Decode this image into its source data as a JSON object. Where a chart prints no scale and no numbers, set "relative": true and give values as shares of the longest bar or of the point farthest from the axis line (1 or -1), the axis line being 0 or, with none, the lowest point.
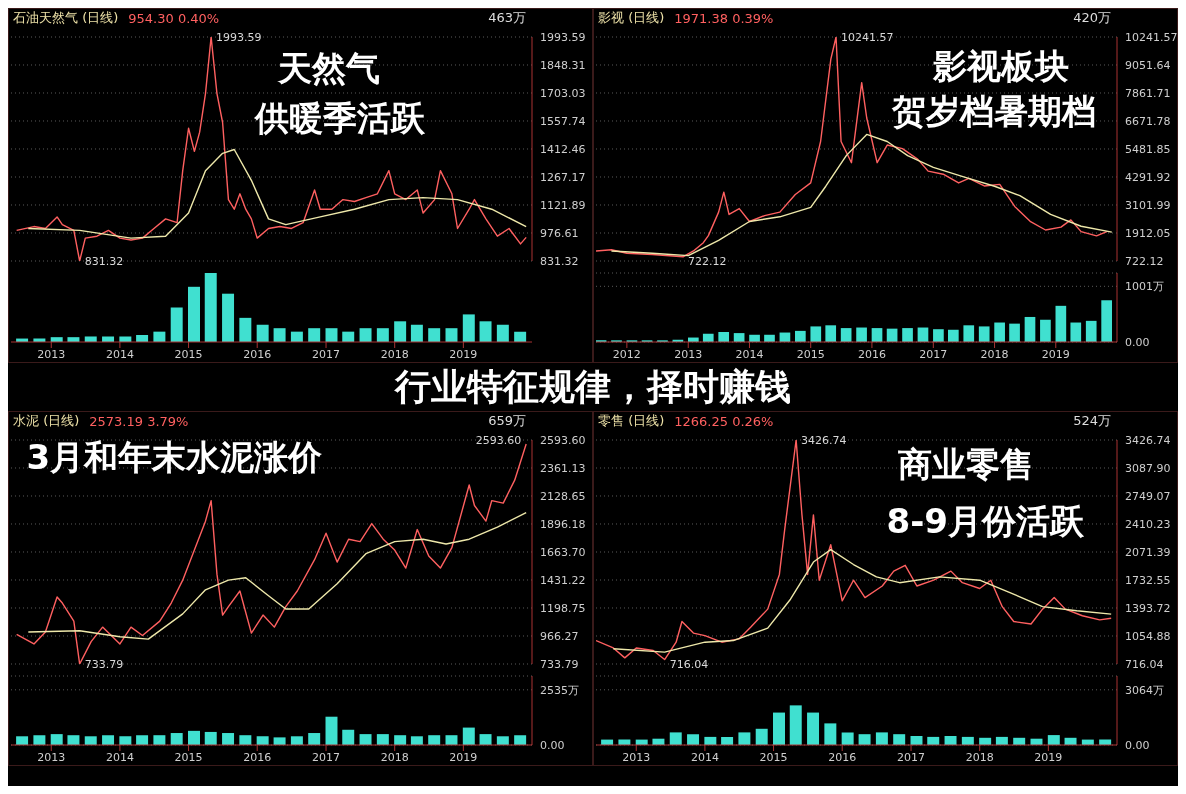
{
  "chart_data": [
    {
      "type": "line",
      "title": "石油天然气 (日线)",
      "subtitle": "954.30 0.40%",
      "annotations": [
        "463万",
        "天然气",
        "供暖季活跃",
        {
          "text": "1993.59",
          "x": "2015-05",
          "y": 1993.59
        },
        {
          "text": "831.32",
          "x": "2013-06",
          "y": 831.32
        }
      ],
      "xlim": [
        "2012-06",
        "2020-01"
      ],
      "xticks": [
        "2013",
        "2014",
        "2015",
        "2016",
        "2017",
        "2018",
        "2019"
      ],
      "ylim": [
        831.32,
        1993.59
      ],
      "yticks": [
        831.32,
        976.61,
        1121.89,
        1267.17,
        1412.46,
        1557.74,
        1703.03,
        1848.31,
        1993.59
      ],
      "grid": "y",
      "tick_labels": "y",
      "series": [
        {
          "color": "#ff6060",
          "x": [
            "2012-07",
            "2012-10",
            "2012-12",
            "2013-02",
            "2013-03",
            "2013-05",
            "2013-06",
            "2013-07",
            "2013-09",
            "2013-11",
            "2014-01",
            "2014-03",
            "2014-05",
            "2014-07",
            "2014-09",
            "2014-11",
            "2014-12",
            "2015-01",
            "2015-02",
            "2015-03",
            "2015-04",
            "2015-05",
            "2015-06",
            "2015-07",
            "2015-08",
            "2015-09",
            "2015-10",
            "2015-11",
            "2015-12",
            "2016-01",
            "2016-03",
            "2016-05",
            "2016-07",
            "2016-09",
            "2016-11",
            "2016-12",
            "2017-02",
            "2017-04",
            "2017-06",
            "2017-08",
            "2017-10",
            "2017-12",
            "2018-01",
            "2018-03",
            "2018-05",
            "2018-06",
            "2018-08",
            "2018-09",
            "2018-11",
            "2018-12",
            "2019-02",
            "2019-03",
            "2019-05",
            "2019-07",
            "2019-09",
            "2019-11",
            "2019-12"
          ],
          "values": [
            990,
            1010,
            1000,
            1060,
            1020,
            990,
            831.32,
            950,
            960,
            990,
            950,
            940,
            950,
            1000,
            1050,
            1030,
            1300,
            1520,
            1400,
            1500,
            1700,
            1993.59,
            1700,
            1550,
            1150,
            1100,
            1180,
            1100,
            1050,
            950,
            1000,
            1010,
            1000,
            1030,
            1200,
            1100,
            1100,
            1150,
            1140,
            1160,
            1180,
            1300,
            1180,
            1150,
            1200,
            1080,
            1150,
            1300,
            1180,
            1000,
            1100,
            1150,
            1050,
            960,
            1000,
            920,
            954
          ]
        },
        {
          "color": "#eee8aa",
          "x": [
            "2012-09",
            "2013-06",
            "2014-03",
            "2014-09",
            "2015-01",
            "2015-04",
            "2015-07",
            "2015-09",
            "2015-12",
            "2016-03",
            "2016-06",
            "2016-12",
            "2017-06",
            "2017-12",
            "2018-06",
            "2018-12",
            "2019-06",
            "2019-12"
          ],
          "values": [
            1000,
            990,
            950,
            960,
            1080,
            1300,
            1390,
            1410,
            1250,
            1050,
            1020,
            1060,
            1100,
            1150,
            1160,
            1150,
            1100,
            1010
          ]
        }
      ]
    },
    {
      "type": "bar",
      "relative": true,
      "color": "#40e0d0",
      "xlim": [
        "2012-06",
        "2020-01"
      ],
      "xticks": [
        "2013",
        "2014",
        "2015",
        "2016",
        "2017",
        "2018",
        "2019"
      ],
      "annotations": [
        "行业特征规律，择时赚钱"
      ],
      "x": [
        "2012-08",
        "2012-11",
        "2013-02",
        "2013-05",
        "2013-08",
        "2013-11",
        "2014-02",
        "2014-05",
        "2014-08",
        "2014-11",
        "2015-02",
        "2015-05",
        "2015-08",
        "2015-11",
        "2016-02",
        "2016-05",
        "2016-08",
        "2016-11",
        "2017-02",
        "2017-05",
        "2017-08",
        "2017-11",
        "2018-02",
        "2018-05",
        "2018-08",
        "2018-11",
        "2019-02",
        "2019-05",
        "2019-08",
        "2019-11"
      ],
      "values": [
        0.05,
        0.05,
        0.07,
        0.07,
        0.08,
        0.08,
        0.08,
        0.1,
        0.15,
        0.5,
        0.8,
        1,
        0.7,
        0.35,
        0.25,
        0.2,
        0.15,
        0.2,
        0.2,
        0.15,
        0.2,
        0.2,
        0.3,
        0.25,
        0.2,
        0.2,
        0.4,
        0.3,
        0.25,
        0.15
      ]
    },
    {
      "type": "line",
      "title": "影视 (日线)",
      "subtitle": "1971.38 0.39%",
      "annotations": [
        "420万",
        "影视板块",
        "贺岁档暑期档",
        {
          "text": "10241.57",
          "x": "2015-06",
          "y": 10241.57
        },
        {
          "text": "722.12",
          "x": "2012-12",
          "y": 722.12
        }
      ],
      "xlim": [
        "2011-07",
        "2020-01"
      ],
      "xticks": [
        "2012",
        "2013",
        "2014",
        "2015",
        "2016",
        "2017",
        "2018",
        "2019"
      ],
      "ylim": [
        722.12,
        10241.57
      ],
      "yticks": [
        722.12,
        1912.05,
        3101.99,
        4291.92,
        5481.85,
        6671.78,
        7861.71,
        9051.64,
        10241.57
      ],
      "grid": "y",
      "tick_labels": "y",
      "series": [
        {
          "color": "#ff6060",
          "x": [
            "2011-07",
            "2011-10",
            "2012-01",
            "2012-06",
            "2012-12",
            "2013-02",
            "2013-04",
            "2013-05",
            "2013-07",
            "2013-08",
            "2013-09",
            "2013-11",
            "2014-01",
            "2014-04",
            "2014-07",
            "2014-10",
            "2015-01",
            "2015-03",
            "2015-05",
            "2015-06",
            "2015-07",
            "2015-09",
            "2015-11",
            "2015-12",
            "2016-02",
            "2016-04",
            "2016-07",
            "2016-10",
            "2016-12",
            "2017-03",
            "2017-06",
            "2017-08",
            "2017-11",
            "2018-02",
            "2018-05",
            "2018-08",
            "2018-11",
            "2019-02",
            "2019-04",
            "2019-06",
            "2019-09",
            "2019-11"
          ],
          "values": [
            1150,
            1200,
            1050,
            1000,
            900,
            1150,
            1500,
            1800,
            2800,
            3650,
            2700,
            2950,
            2400,
            2650,
            2800,
            3550,
            4040,
            5800,
            9300,
            10241.57,
            5800,
            4900,
            8300,
            6800,
            4900,
            5650,
            5500,
            5040,
            4540,
            4410,
            4040,
            4230,
            3910,
            3980,
            3040,
            2410,
            2040,
            2160,
            2470,
            1970,
            1790,
            1970
          ]
        },
        {
          "color": "#eee8aa",
          "x": [
            "2011-10",
            "2012-06",
            "2013-01",
            "2013-07",
            "2014-01",
            "2014-07",
            "2015-01",
            "2015-04",
            "2015-08",
            "2015-12",
            "2016-04",
            "2016-08",
            "2017-01",
            "2017-07",
            "2018-01",
            "2018-06",
            "2018-12",
            "2019-06",
            "2019-12"
          ],
          "values": [
            1150,
            1050,
            950,
            1600,
            2400,
            2600,
            3000,
            3900,
            5200,
            6100,
            5800,
            5200,
            4700,
            4300,
            3900,
            3500,
            2700,
            2200,
            1950
          ]
        }
      ]
    },
    {
      "type": "bar",
      "color": "#40e0d0",
      "xlim": [
        "2011-07",
        "2020-01"
      ],
      "xticks": [
        "2012",
        "2013",
        "2014",
        "2015",
        "2016",
        "2017",
        "2018",
        "2019"
      ],
      "ylim": [
        0,
        1240
      ],
      "yticks": [
        {
          "value": 0,
          "label": "0.00"
        },
        {
          "value": 1001,
          "label": "1001万"
        }
      ],
      "grid": "y",
      "x": [
        "2011-08",
        "2011-11",
        "2012-02",
        "2012-05",
        "2012-08",
        "2012-11",
        "2013-02",
        "2013-05",
        "2013-08",
        "2013-11",
        "2014-02",
        "2014-05",
        "2014-08",
        "2014-11",
        "2015-02",
        "2015-05",
        "2015-08",
        "2015-11",
        "2016-02",
        "2016-05",
        "2016-08",
        "2016-11",
        "2017-02",
        "2017-05",
        "2017-08",
        "2017-11",
        "2018-02",
        "2018-05",
        "2018-08",
        "2018-11",
        "2019-02",
        "2019-05",
        "2019-08",
        "2019-11"
      ],
      "values": [
        30,
        30,
        30,
        30,
        30,
        40,
        80,
        150,
        180,
        160,
        130,
        130,
        170,
        200,
        280,
        300,
        250,
        260,
        250,
        240,
        250,
        260,
        230,
        220,
        300,
        280,
        350,
        330,
        450,
        400,
        650,
        350,
        380,
        750
      ]
    },
    {
      "type": "line",
      "title": "水泥 (日线)",
      "subtitle": "2573.19 3.79%",
      "annotations": [
        "659万",
        "3月和年末水泥涨价",
        {
          "text": "2593.60",
          "x": "2019-12",
          "y": 2593.6
        },
        {
          "text": "733.79",
          "x": "2013-06",
          "y": 733.79
        }
      ],
      "xlim": [
        "2012-06",
        "2020-01"
      ],
      "xticks": [
        "2013",
        "2014",
        "2015",
        "2016",
        "2017",
        "2018",
        "2019"
      ],
      "ylim": [
        733.79,
        2593.6
      ],
      "yticks": [
        733.79,
        966.27,
        1198.75,
        1431.22,
        {
          "value": 1663.7,
          "label": "1663.70"
        },
        1896.18,
        2128.65,
        2361.13,
        {
          "value": 2593.6,
          "label": "2593.60"
        }
      ],
      "grid": "y",
      "tick_labels": "y",
      "series": [
        {
          "color": "#ff6060",
          "x": [
            "2012-07",
            "2012-10",
            "2012-12",
            "2013-02",
            "2013-03",
            "2013-05",
            "2013-06",
            "2013-08",
            "2013-10",
            "2014-01",
            "2014-03",
            "2014-05",
            "2014-08",
            "2014-10",
            "2014-12",
            "2015-02",
            "2015-04",
            "2015-05",
            "2015-06",
            "2015-07",
            "2015-08",
            "2015-10",
            "2015-12",
            "2016-02",
            "2016-04",
            "2016-06",
            "2016-08",
            "2016-11",
            "2017-01",
            "2017-03",
            "2017-05",
            "2017-07",
            "2017-09",
            "2017-11",
            "2018-01",
            "2018-03",
            "2018-05",
            "2018-07",
            "2018-09",
            "2018-11",
            "2019-02",
            "2019-03",
            "2019-05",
            "2019-06",
            "2019-08",
            "2019-10",
            "2019-12"
          ],
          "values": [
            980,
            900,
            1000,
            1290,
            1240,
            1090,
            733.79,
            920,
            1040,
            900,
            1040,
            970,
            1090,
            1240,
            1430,
            1680,
            1920,
            2090,
            1480,
            1140,
            1210,
            1340,
            990,
            1140,
            1040,
            1210,
            1340,
            1600,
            1820,
            1580,
            1770,
            1750,
            1900,
            1770,
            1680,
            1530,
            1850,
            1630,
            1530,
            1700,
            2220,
            2050,
            1920,
            2090,
            2070,
            2260,
            2560
          ]
        },
        {
          "color": "#eee8aa",
          "x": [
            "2012-09",
            "2013-06",
            "2014-01",
            "2014-06",
            "2014-12",
            "2015-04",
            "2015-08",
            "2015-11",
            "2016-03",
            "2016-06",
            "2016-10",
            "2017-03",
            "2017-08",
            "2018-01",
            "2018-06",
            "2018-10",
            "2019-02",
            "2019-07",
            "2019-12"
          ],
          "values": [
            1000,
            1010,
            960,
            940,
            1150,
            1350,
            1430,
            1450,
            1300,
            1190,
            1190,
            1400,
            1650,
            1750,
            1770,
            1730,
            1770,
            1870,
            1990
          ]
        }
      ]
    },
    {
      "type": "bar",
      "color": "#40e0d0",
      "xlim": [
        "2012-06",
        "2020-01"
      ],
      "xticks": [
        "2013",
        "2014",
        "2015",
        "2016",
        "2017",
        "2018",
        "2019"
      ],
      "ylim": [
        0,
        3170
      ],
      "yticks": [
        {
          "value": 0,
          "label": "0.00"
        },
        {
          "value": 2535,
          "label": "2535万"
        }
      ],
      "grid": "y",
      "x": [
        "2012-08",
        "2012-11",
        "2013-02",
        "2013-05",
        "2013-08",
        "2013-11",
        "2014-02",
        "2014-05",
        "2014-08",
        "2014-11",
        "2015-02",
        "2015-05",
        "2015-08",
        "2015-11",
        "2016-02",
        "2016-05",
        "2016-08",
        "2016-11",
        "2017-02",
        "2017-05",
        "2017-08",
        "2017-11",
        "2018-02",
        "2018-05",
        "2018-08",
        "2018-11",
        "2019-02",
        "2019-05",
        "2019-08",
        "2019-11"
      ],
      "values": [
        400,
        450,
        500,
        450,
        400,
        450,
        400,
        450,
        450,
        550,
        650,
        600,
        550,
        450,
        400,
        350,
        400,
        550,
        1300,
        700,
        500,
        500,
        450,
        400,
        450,
        450,
        800,
        500,
        400,
        450
      ]
    },
    {
      "type": "line",
      "title": "零售 (日线)",
      "subtitle": "1266.25 0.26%",
      "annotations": [
        "524万",
        "商业零售",
        "8-9月份活跃",
        {
          "text": "3426.74",
          "x": "2015-05",
          "y": 3426.74
        },
        {
          "text": "716.04",
          "x": "2013-06",
          "y": 716.04
        }
      ],
      "xlim": [
        "2012-06",
        "2020-01"
      ],
      "xticks": [
        "2013",
        "2014",
        "2015",
        "2016",
        "2017",
        "2018",
        "2019"
      ],
      "ylim": [
        716.04,
        3426.74
      ],
      "yticks": [
        716.04,
        1054.88,
        1393.72,
        1732.55,
        2071.39,
        2410.23,
        2749.07,
        {
          "value": 3087.9,
          "label": "3087.90"
        },
        3426.74
      ],
      "grid": "y",
      "tick_labels": "y",
      "series": [
        {
          "color": "#ff6060",
          "x": [
            "2012-06",
            "2012-09",
            "2012-11",
            "2013-01",
            "2013-04",
            "2013-06",
            "2013-08",
            "2013-09",
            "2013-11",
            "2014-01",
            "2014-04",
            "2014-07",
            "2014-09",
            "2014-12",
            "2015-02",
            "2015-03",
            "2015-05",
            "2015-06",
            "2015-07",
            "2015-08",
            "2015-09",
            "2015-11",
            "2016-01",
            "2016-03",
            "2016-05",
            "2016-08",
            "2016-10",
            "2016-12",
            "2017-02",
            "2017-05",
            "2017-08",
            "2017-10",
            "2018-01",
            "2018-03",
            "2018-05",
            "2018-07",
            "2018-10",
            "2018-12",
            "2019-02",
            "2019-04",
            "2019-07",
            "2019-10",
            "2019-12"
          ],
          "values": [
            1000,
            910,
            790,
            910,
            880,
            770,
            980,
            1230,
            1090,
            1060,
            980,
            1020,
            1160,
            1380,
            1800,
            2340,
            3426.74,
            2520,
            1800,
            2520,
            1730,
            2160,
            1480,
            1730,
            1520,
            1660,
            1840,
            1910,
            1660,
            1730,
            1840,
            1700,
            1630,
            1730,
            1410,
            1230,
            1200,
            1380,
            1520,
            1380,
            1300,
            1250,
            1270
          ]
        },
        {
          "color": "#eee8aa",
          "x": [
            "2012-09",
            "2013-06",
            "2014-01",
            "2014-06",
            "2014-12",
            "2015-04",
            "2015-08",
            "2015-11",
            "2016-03",
            "2016-07",
            "2016-11",
            "2017-06",
            "2018-01",
            "2018-06",
            "2018-12",
            "2019-06",
            "2019-12"
          ],
          "values": [
            900,
            860,
            980,
            1000,
            1150,
            1500,
            1950,
            2100,
            1920,
            1770,
            1700,
            1770,
            1730,
            1590,
            1410,
            1360,
            1320
          ]
        }
      ]
    },
    {
      "type": "bar",
      "color": "#40e0d0",
      "xlim": [
        "2012-06",
        "2020-01"
      ],
      "xticks": [
        "2013",
        "2014",
        "2015",
        "2016",
        "2017",
        "2018",
        "2019"
      ],
      "ylim": [
        0,
        3830
      ],
      "yticks": [
        {
          "value": 0,
          "label": "0.00"
        },
        {
          "value": 3064,
          "label": "3064万"
        }
      ],
      "grid": "y",
      "x": [
        "2012-08",
        "2012-11",
        "2013-02",
        "2013-05",
        "2013-08",
        "2013-11",
        "2014-02",
        "2014-05",
        "2014-08",
        "2014-11",
        "2015-02",
        "2015-05",
        "2015-08",
        "2015-11",
        "2016-02",
        "2016-05",
        "2016-08",
        "2016-11",
        "2017-02",
        "2017-05",
        "2017-08",
        "2017-11",
        "2018-02",
        "2018-05",
        "2018-08",
        "2018-11",
        "2019-02",
        "2019-05",
        "2019-08",
        "2019-11"
      ],
      "values": [
        300,
        300,
        300,
        350,
        700,
        600,
        450,
        450,
        700,
        900,
        1800,
        2200,
        1800,
        1200,
        700,
        600,
        700,
        600,
        500,
        450,
        500,
        450,
        400,
        450,
        400,
        350,
        550,
        400,
        300,
        300
      ]
    }
  ]
}
